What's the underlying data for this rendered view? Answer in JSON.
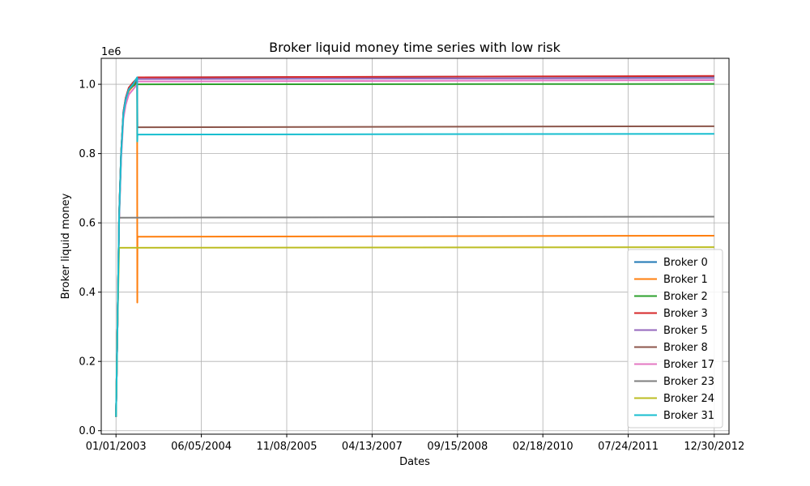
{
  "chart_data": {
    "type": "line",
    "title": "Broker liquid money time series with low risk",
    "xlabel": "Dates",
    "ylabel": "Broker liquid money",
    "y_offset_label": "1e6",
    "xlim": [
      "2002-10-03",
      "2013-03-30"
    ],
    "ylim": [
      -10000,
      1075000
    ],
    "x_ticks": [
      "01/01/2003",
      "06/05/2004",
      "11/08/2005",
      "04/13/2007",
      "09/15/2008",
      "02/18/2010",
      "07/24/2011",
      "12/30/2012"
    ],
    "y_ticks": [
      0,
      200000,
      400000,
      600000,
      800000,
      1000000
    ],
    "y_tick_labels": [
      "0.0",
      "0.2",
      "0.4",
      "0.6",
      "0.8",
      "1.0"
    ],
    "grid": true,
    "legend_position": "lower right",
    "series": [
      {
        "name": "Broker 0",
        "color": "#1f77b4",
        "values": [
          [
            "2003-01-01",
            40000
          ],
          [
            "2003-01-10",
            300000
          ],
          [
            "2003-01-20",
            620000
          ],
          [
            "2003-02-01",
            800000
          ],
          [
            "2003-02-15",
            920000
          ],
          [
            "2003-03-01",
            960000
          ],
          [
            "2003-03-20",
            990000
          ],
          [
            "2003-04-15",
            1005000
          ],
          [
            "2003-05-10",
            1015000
          ],
          [
            "2003-05-12",
            1020000
          ],
          [
            "2012-12-30",
            1023000
          ]
        ]
      },
      {
        "name": "Broker 1",
        "color": "#ff7f0e",
        "values": [
          [
            "2003-01-01",
            40000
          ],
          [
            "2003-01-10",
            300000
          ],
          [
            "2003-01-20",
            610000
          ],
          [
            "2003-02-01",
            790000
          ],
          [
            "2003-02-15",
            910000
          ],
          [
            "2003-03-01",
            950000
          ],
          [
            "2003-03-20",
            980000
          ],
          [
            "2003-04-15",
            995000
          ],
          [
            "2003-05-10",
            1000000
          ],
          [
            "2003-05-11",
            370000
          ],
          [
            "2003-05-12",
            560000
          ],
          [
            "2012-12-30",
            563000
          ]
        ]
      },
      {
        "name": "Broker 2",
        "color": "#2ca02c",
        "values": [
          [
            "2003-01-01",
            40000
          ],
          [
            "2003-01-10",
            300000
          ],
          [
            "2003-01-20",
            620000
          ],
          [
            "2003-02-01",
            800000
          ],
          [
            "2003-02-15",
            915000
          ],
          [
            "2003-03-01",
            955000
          ],
          [
            "2003-03-20",
            985000
          ],
          [
            "2003-04-15",
            995000
          ],
          [
            "2003-05-10",
            1005000
          ],
          [
            "2003-05-12",
            1000000
          ],
          [
            "2012-12-30",
            1001000
          ]
        ]
      },
      {
        "name": "Broker 3",
        "color": "#d62728",
        "values": [
          [
            "2003-01-01",
            40000
          ],
          [
            "2003-01-10",
            300000
          ],
          [
            "2003-01-20",
            620000
          ],
          [
            "2003-02-01",
            800000
          ],
          [
            "2003-02-15",
            920000
          ],
          [
            "2003-03-01",
            960000
          ],
          [
            "2003-03-20",
            990000
          ],
          [
            "2003-04-15",
            1005000
          ],
          [
            "2003-05-10",
            1018000
          ],
          [
            "2003-05-12",
            1020000
          ],
          [
            "2012-12-30",
            1024000
          ]
        ]
      },
      {
        "name": "Broker 5",
        "color": "#9467bd",
        "values": [
          [
            "2003-01-01",
            40000
          ],
          [
            "2003-01-10",
            300000
          ],
          [
            "2003-01-20",
            615000
          ],
          [
            "2003-02-01",
            795000
          ],
          [
            "2003-02-15",
            915000
          ],
          [
            "2003-03-01",
            955000
          ],
          [
            "2003-03-20",
            985000
          ],
          [
            "2003-04-15",
            1000000
          ],
          [
            "2003-05-10",
            1012000
          ],
          [
            "2003-05-12",
            1015000
          ],
          [
            "2012-12-30",
            1018000
          ]
        ]
      },
      {
        "name": "Broker 8",
        "color": "#8c564b",
        "values": [
          [
            "2003-01-01",
            40000
          ],
          [
            "2003-01-10",
            300000
          ],
          [
            "2003-01-20",
            615000
          ],
          [
            "2003-02-01",
            795000
          ],
          [
            "2003-02-15",
            915000
          ],
          [
            "2003-03-01",
            955000
          ],
          [
            "2003-03-20",
            985000
          ],
          [
            "2003-04-15",
            1000000
          ],
          [
            "2003-05-10",
            1010000
          ],
          [
            "2003-05-12",
            876000
          ],
          [
            "2012-12-30",
            879000
          ]
        ]
      },
      {
        "name": "Broker 17",
        "color": "#e377c2",
        "values": [
          [
            "2003-01-01",
            40000
          ],
          [
            "2003-01-10",
            290000
          ],
          [
            "2003-01-20",
            600000
          ],
          [
            "2003-02-01",
            780000
          ],
          [
            "2003-02-15",
            900000
          ],
          [
            "2003-03-01",
            940000
          ],
          [
            "2003-03-20",
            970000
          ],
          [
            "2003-04-15",
            985000
          ],
          [
            "2003-05-10",
            1000000
          ],
          [
            "2003-05-12",
            1008000
          ],
          [
            "2012-12-30",
            1012000
          ]
        ]
      },
      {
        "name": "Broker 23",
        "color": "#7f7f7f",
        "values": [
          [
            "2003-01-01",
            40000
          ],
          [
            "2003-01-10",
            300000
          ],
          [
            "2003-01-20",
            615000
          ],
          [
            "2003-02-01",
            615000
          ],
          [
            "2012-12-30",
            618000
          ]
        ]
      },
      {
        "name": "Broker 24",
        "color": "#bcbd22",
        "values": [
          [
            "2003-01-01",
            40000
          ],
          [
            "2003-01-10",
            300000
          ],
          [
            "2003-01-20",
            528000
          ],
          [
            "2003-02-01",
            528000
          ],
          [
            "2012-12-30",
            530000
          ]
        ]
      },
      {
        "name": "Broker 31",
        "color": "#17becf",
        "values": [
          [
            "2003-01-01",
            40000
          ],
          [
            "2003-01-10",
            300000
          ],
          [
            "2003-01-20",
            615000
          ],
          [
            "2003-02-01",
            795000
          ],
          [
            "2003-02-15",
            915000
          ],
          [
            "2003-03-01",
            955000
          ],
          [
            "2003-03-20",
            985000
          ],
          [
            "2003-04-15",
            1000000
          ],
          [
            "2003-05-10",
            1020000
          ],
          [
            "2003-05-11",
            835000
          ],
          [
            "2003-05-12",
            855000
          ],
          [
            "2012-12-30",
            857000
          ]
        ]
      }
    ]
  }
}
